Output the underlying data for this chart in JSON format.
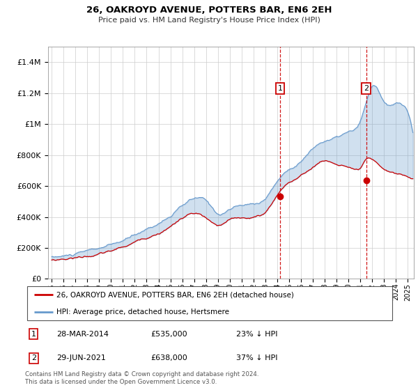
{
  "title": "26, OAKROYD AVENUE, POTTERS BAR, EN6 2EH",
  "subtitle": "Price paid vs. HM Land Registry's House Price Index (HPI)",
  "ylim": [
    0,
    1500000
  ],
  "yticks": [
    0,
    200000,
    400000,
    600000,
    800000,
    1000000,
    1200000,
    1400000
  ],
  "sale1_x": 2014.23,
  "sale1_price": 535000,
  "sale2_x": 2021.49,
  "sale2_price": 638000,
  "legend_line1": "26, OAKROYD AVENUE, POTTERS BAR, EN6 2EH (detached house)",
  "legend_line2": "HPI: Average price, detached house, Hertsmere",
  "table_row1": [
    "1",
    "28-MAR-2014",
    "£535,000",
    "23% ↓ HPI"
  ],
  "table_row2": [
    "2",
    "29-JUN-2021",
    "£638,000",
    "37% ↓ HPI"
  ],
  "footer": "Contains HM Land Registry data © Crown copyright and database right 2024.\nThis data is licensed under the Open Government Licence v3.0.",
  "red_color": "#cc0000",
  "blue_color": "#6699cc",
  "grid_color": "#cccccc",
  "vline_color": "#cc0000",
  "box_color": "#cc0000",
  "xlim_left": 1994.7,
  "xlim_right": 2025.5
}
